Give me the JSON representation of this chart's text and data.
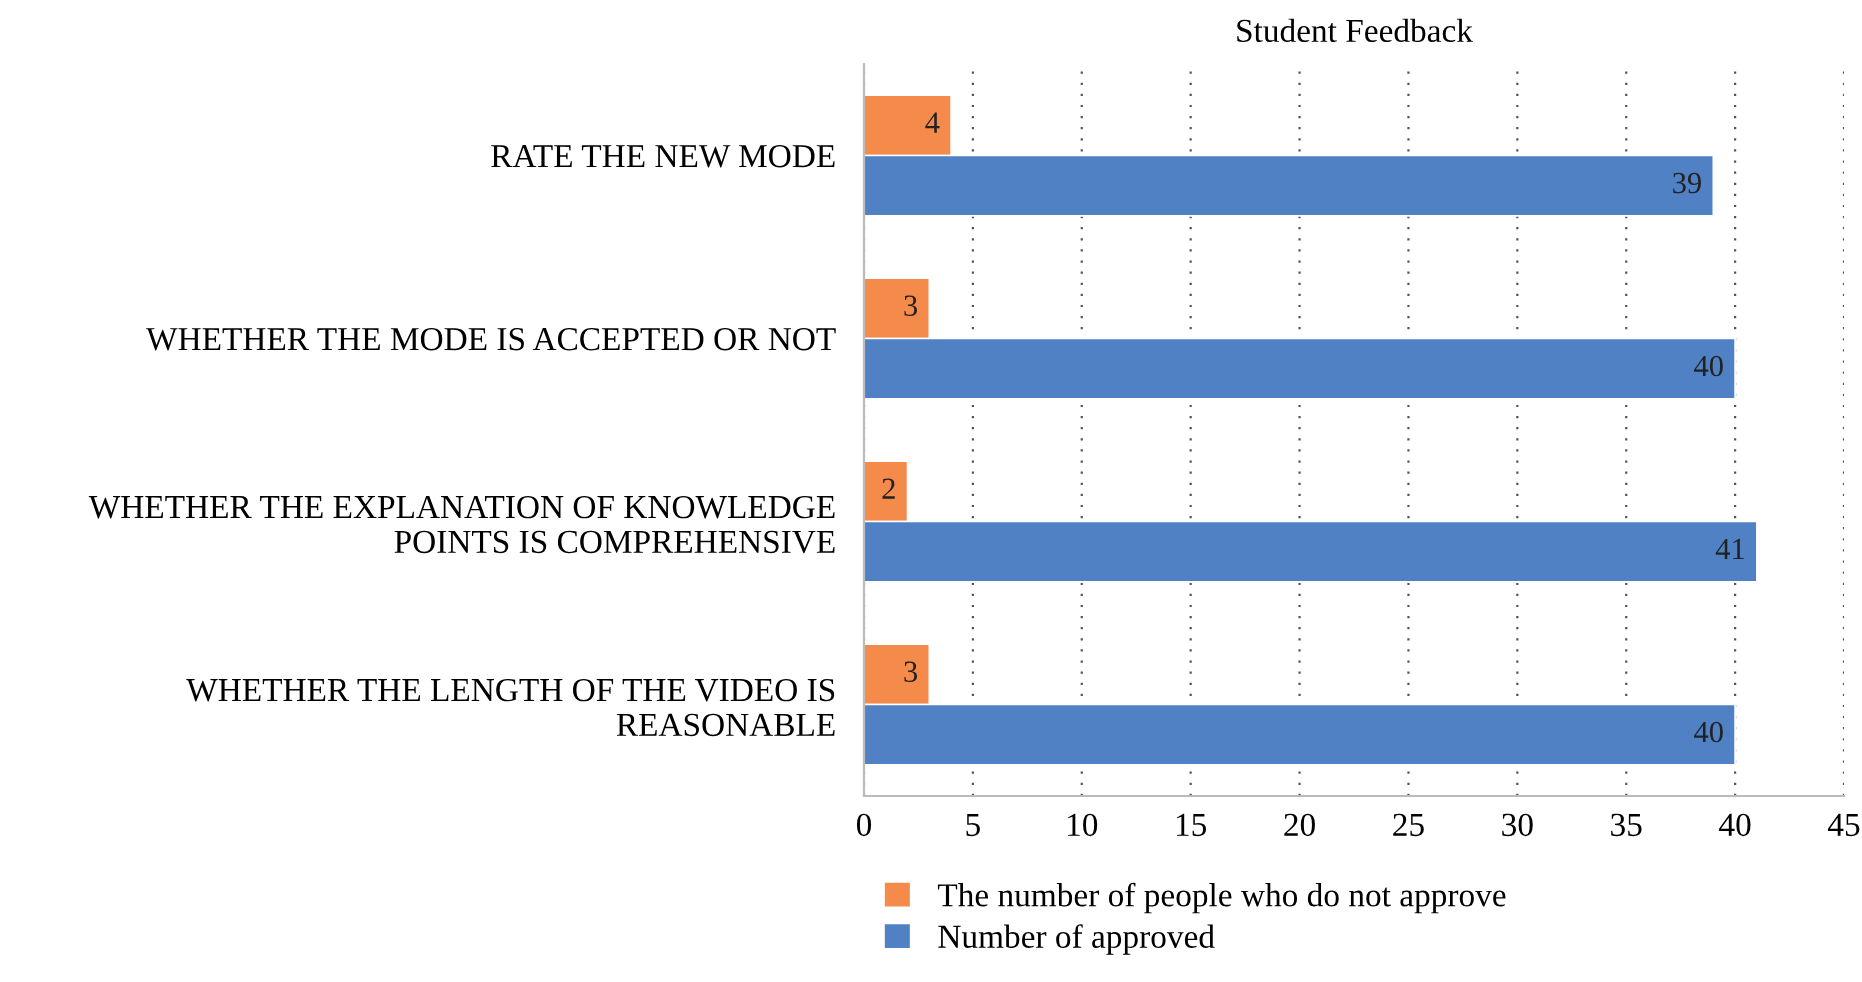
{
  "chart_data": {
    "type": "bar",
    "orientation": "horizontal",
    "title": "Student Feedback",
    "categories": [
      "RATE THE NEW MODE",
      "WHETHER THE MODE IS ACCEPTED OR NOT",
      "WHETHER THE EXPLANATION OF KNOWLEDGE\nPOINTS IS COMPREHENSIVE",
      "WHETHER THE LENGTH OF THE VIDEO IS\nREASONABLE"
    ],
    "series": [
      {
        "name": "The number of people who do not approve",
        "color": "#f58b4b",
        "values": [
          4,
          3,
          2,
          3
        ]
      },
      {
        "name": "Number of approved",
        "color": "#4f81c4",
        "values": [
          39,
          40,
          41,
          40
        ]
      }
    ],
    "xlim": [
      0,
      45
    ],
    "xticks": [
      0,
      5,
      10,
      15,
      20,
      25,
      30,
      35,
      40,
      45
    ],
    "grid": "x",
    "legend": "bottom",
    "data_labels": true
  }
}
